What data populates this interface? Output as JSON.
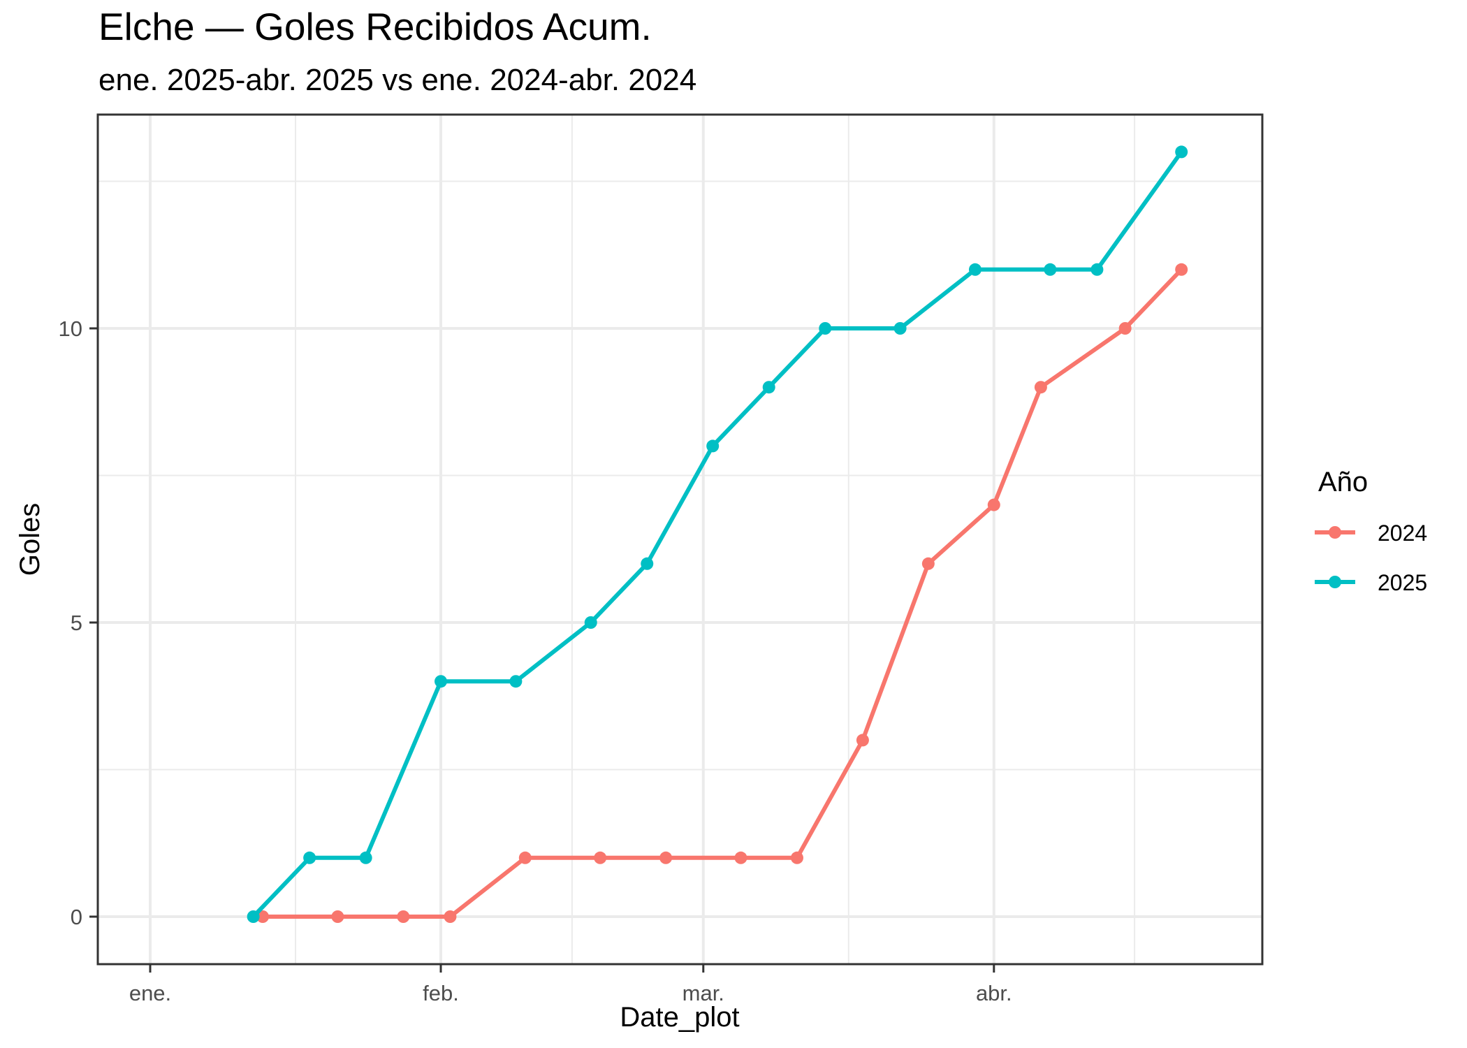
{
  "header": {
    "title": "Elche — Goles Recibidos Acum.",
    "subtitle": "ene. 2025-abr. 2025 vs ene. 2024-abr. 2024"
  },
  "axes": {
    "x_title": "Date_plot",
    "y_title": "Goles",
    "x_ticks": [
      {
        "label": "ene.",
        "day": 0
      },
      {
        "label": "feb.",
        "day": 31
      },
      {
        "label": "mar.",
        "day": 59
      },
      {
        "label": "abr.",
        "day": 90
      }
    ],
    "x_minor_days": [
      15.5,
      45,
      74.5,
      105
    ],
    "y_ticks": [
      {
        "label": "0",
        "value": 0
      },
      {
        "label": "5",
        "value": 5
      },
      {
        "label": "10",
        "value": 10
      }
    ],
    "y_minor": [
      2.5,
      7.5,
      12.5
    ]
  },
  "legend": {
    "title": "Año",
    "items": [
      {
        "label": "2024",
        "color": "#F8766D"
      },
      {
        "label": "2025",
        "color": "#00BFC4"
      }
    ]
  },
  "colors": {
    "series_2024": "#F8766D",
    "series_2025": "#00BFC4",
    "panel_border": "#333333",
    "grid": "#EBEBEB",
    "tick_text": "#4D4D4D"
  },
  "chart_data": {
    "type": "line",
    "title": "Elche — Goles Recibidos Acum.",
    "subtitle": "ene. 2025-abr. 2025 vs ene. 2024-abr. 2024",
    "xlabel": "Date_plot",
    "ylabel": "Goles",
    "x_tick_labels": [
      "ene.",
      "feb.",
      "mar.",
      "abr."
    ],
    "y_tick_labels": [
      "0",
      "5",
      "10"
    ],
    "ylim": [
      -0.65,
      13.65
    ],
    "grid": true,
    "legend_title": "Año",
    "legend_position": "right",
    "series": [
      {
        "name": "2024",
        "color": "#F8766D",
        "x": [
          "01-13",
          "01-21",
          "01-28",
          "02-02",
          "02-10",
          "02-18",
          "02-25",
          "03-04",
          "03-10",
          "03-17",
          "03-24",
          "03-31",
          "04-05",
          "04-14",
          "04-20"
        ],
        "day": [
          12,
          20,
          27,
          32,
          40,
          48,
          55,
          63,
          69,
          76,
          83,
          90,
          95,
          104,
          110
        ],
        "values": [
          0,
          0,
          0,
          0,
          1,
          1,
          1,
          1,
          1,
          3,
          6,
          7,
          9,
          10,
          11
        ]
      },
      {
        "name": "2025",
        "color": "#00BFC4",
        "x": [
          "01-12",
          "01-18",
          "01-24",
          "02-01",
          "02-09",
          "02-17",
          "02-23",
          "03-02",
          "03-08",
          "03-14",
          "03-22",
          "03-30",
          "04-07",
          "04-12",
          "04-20"
        ],
        "day": [
          11,
          17,
          23,
          31,
          39,
          47,
          53,
          60,
          66,
          72,
          80,
          88,
          96,
          101,
          110
        ],
        "values": [
          0,
          1,
          1,
          4,
          4,
          5,
          6,
          8,
          9,
          10,
          10,
          11,
          11,
          11,
          13
        ]
      }
    ]
  }
}
